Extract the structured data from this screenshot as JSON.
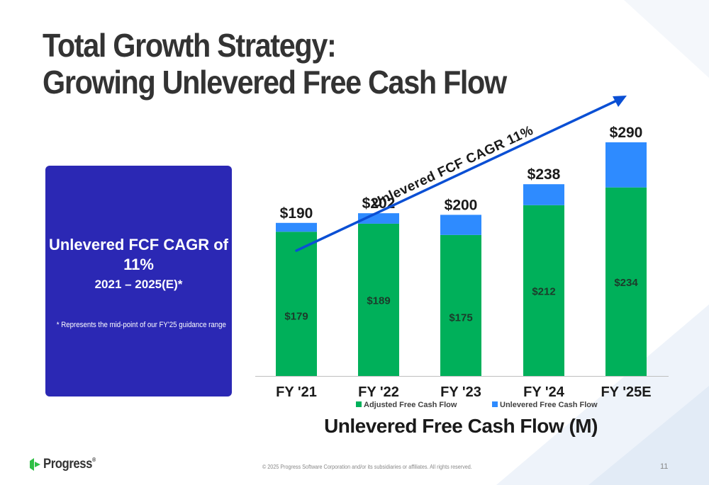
{
  "slide": {
    "title_line1": "Total Growth Strategy:",
    "title_line2": "Growing Unlevered Free Cash Flow"
  },
  "callout": {
    "heading": "Unlevered FCF CAGR of 11%",
    "period": "2021 – 2025(E)*",
    "footnote": "* Represents the mid-point of our FY'25 guidance range",
    "color": "#2b28b4"
  },
  "chart_data": {
    "type": "bar",
    "stacked": true,
    "categories": [
      "FY '21",
      "FY '22",
      "FY '23",
      "FY '24",
      "FY '25E"
    ],
    "series": [
      {
        "name": "Adjusted Free Cash Flow",
        "values": [
          179,
          189,
          175,
          212,
          234
        ],
        "labels": [
          "$179",
          "$189",
          "$175",
          "$212",
          "$234"
        ],
        "color": "#00b05a"
      },
      {
        "name": "Unlevered Free Cash Flow",
        "values": [
          11,
          13,
          25,
          26,
          56
        ],
        "color": "#2e8bff"
      }
    ],
    "totals": [
      190,
      202,
      200,
      238,
      290
    ],
    "total_labels": [
      "$190",
      "$202",
      "$200",
      "$238",
      "$290"
    ],
    "xlabel": "Unlevered Free Cash Flow (M)",
    "ylim": [
      0,
      290
    ],
    "legend_position": "bottom",
    "trend_annotation": "Unlevered FCF CAGR 11%",
    "trend_arrow_color": "#0a4fd4"
  },
  "footer": {
    "logo_text": "Progress",
    "logo_tm": "®",
    "copyright": "© 2025 Progress Software Corporation and/or its subsidiaries or affiliates. All rights reserved.",
    "page_number": "11"
  }
}
